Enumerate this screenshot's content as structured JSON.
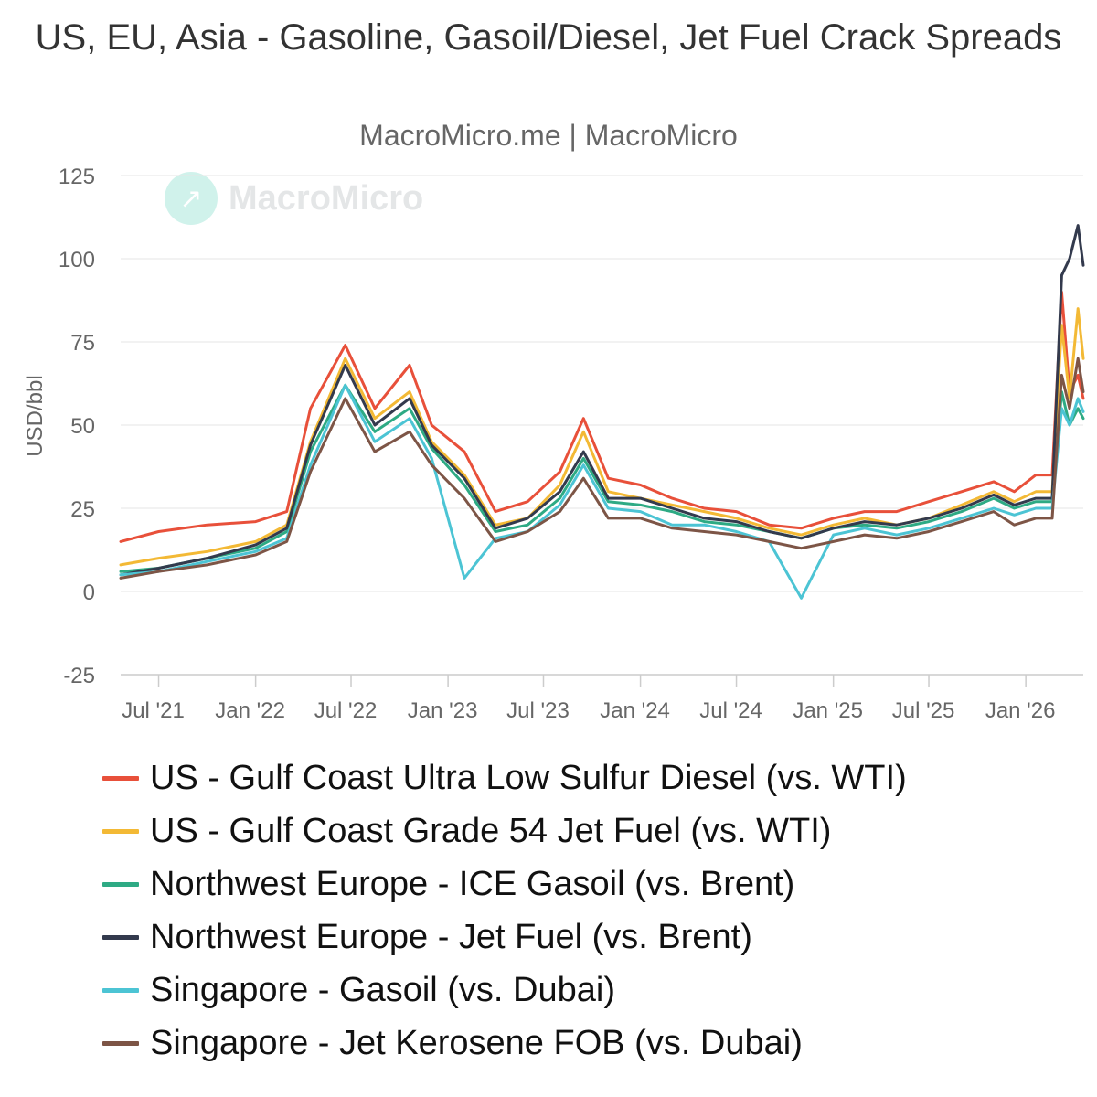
{
  "title": "US, EU, Asia - Gasoline, Gasoil/Diesel, Jet Fuel Crack Spreads",
  "subtitle": "MacroMicro.me | MacroMicro",
  "watermark": "MacroMicro",
  "chart_data": {
    "type": "line",
    "ylabel": "USD/bbl",
    "ylim": [
      -25,
      125
    ],
    "yticks": [
      125,
      100,
      75,
      50,
      25,
      0,
      -25
    ],
    "xlim": [
      "2021-04-20",
      "2026-04-20"
    ],
    "xticks": [
      {
        "date": "2021-07-01",
        "label": "Jul '21"
      },
      {
        "date": "2022-01-01",
        "label": "Jan '22"
      },
      {
        "date": "2022-07-01",
        "label": "Jul '22"
      },
      {
        "date": "2023-01-01",
        "label": "Jan '23"
      },
      {
        "date": "2023-07-01",
        "label": "Jul '23"
      },
      {
        "date": "2024-01-01",
        "label": "Jan '24"
      },
      {
        "date": "2024-07-01",
        "label": "Jul '24"
      },
      {
        "date": "2025-01-01",
        "label": "Jan '25"
      },
      {
        "date": "2025-07-01",
        "label": "Jul '25"
      },
      {
        "date": "2026-01-01",
        "label": "Jan '26"
      }
    ],
    "grid": true,
    "legend_position": "bottom",
    "x": [
      "2021-04-20",
      "2021-07-01",
      "2021-10-01",
      "2022-01-01",
      "2022-03-01",
      "2022-04-15",
      "2022-06-20",
      "2022-08-15",
      "2022-10-20",
      "2022-12-01",
      "2023-02-01",
      "2023-04-01",
      "2023-06-01",
      "2023-08-01",
      "2023-09-15",
      "2023-11-01",
      "2024-01-01",
      "2024-03-01",
      "2024-05-01",
      "2024-07-01",
      "2024-09-01",
      "2024-11-01",
      "2025-01-01",
      "2025-03-01",
      "2025-05-01",
      "2025-07-01",
      "2025-09-01",
      "2025-11-01",
      "2025-12-10",
      "2026-01-20",
      "2026-02-20",
      "2026-03-10",
      "2026-03-25",
      "2026-04-10",
      "2026-04-20"
    ],
    "series": [
      {
        "name": "US - Gulf Coast Ultra Low Sulfur Diesel (vs. WTI)",
        "color": "#e8503a",
        "values": [
          15,
          18,
          20,
          21,
          24,
          55,
          74,
          55,
          68,
          50,
          42,
          24,
          27,
          36,
          52,
          34,
          32,
          28,
          25,
          24,
          20,
          19,
          22,
          24,
          24,
          27,
          30,
          33,
          30,
          35,
          35,
          90,
          60,
          65,
          58
        ]
      },
      {
        "name": "US - Gulf Coast Grade 54 Jet Fuel (vs. WTI)",
        "color": "#f3b935",
        "values": [
          8,
          10,
          12,
          15,
          20,
          45,
          70,
          52,
          60,
          45,
          35,
          20,
          22,
          32,
          48,
          30,
          28,
          26,
          24,
          22,
          19,
          17,
          20,
          22,
          20,
          22,
          26,
          30,
          27,
          30,
          30,
          80,
          58,
          85,
          70
        ]
      },
      {
        "name": "Northwest Europe - ICE Gasoil (vs. Brent)",
        "color": "#2eaa84",
        "values": [
          6,
          7,
          10,
          13,
          18,
          42,
          62,
          48,
          55,
          43,
          32,
          18,
          20,
          28,
          40,
          27,
          26,
          24,
          21,
          20,
          18,
          16,
          19,
          20,
          19,
          21,
          24,
          28,
          25,
          27,
          27,
          60,
          50,
          55,
          52
        ]
      },
      {
        "name": "Northwest Europe - Jet Fuel (vs. Brent)",
        "color": "#333a4d",
        "values": [
          5,
          7,
          10,
          14,
          19,
          44,
          68,
          50,
          58,
          44,
          34,
          19,
          22,
          30,
          42,
          28,
          28,
          25,
          22,
          21,
          18,
          16,
          19,
          21,
          20,
          22,
          25,
          29,
          26,
          28,
          28,
          95,
          100,
          110,
          98
        ]
      },
      {
        "name": "Singapore - Gasoil (vs. Dubai)",
        "color": "#4cc4d4",
        "values": [
          5,
          6,
          9,
          12,
          16,
          38,
          62,
          45,
          52,
          40,
          4,
          16,
          18,
          26,
          38,
          25,
          24,
          20,
          20,
          18,
          15,
          -2,
          17,
          19,
          17,
          19,
          22,
          25,
          23,
          25,
          25,
          55,
          50,
          58,
          54
        ]
      },
      {
        "name": "Singapore - Jet Kerosene FOB (vs. Dubai)",
        "color": "#7d5546",
        "values": [
          4,
          6,
          8,
          11,
          15,
          36,
          58,
          42,
          48,
          38,
          28,
          15,
          18,
          24,
          34,
          22,
          22,
          19,
          18,
          17,
          15,
          13,
          15,
          17,
          16,
          18,
          21,
          24,
          20,
          22,
          22,
          65,
          55,
          70,
          60
        ]
      }
    ]
  }
}
